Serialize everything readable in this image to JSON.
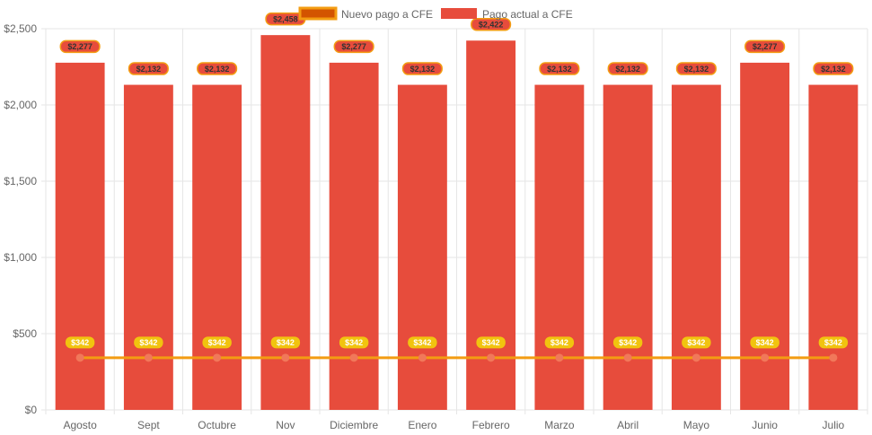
{
  "chart_data": {
    "type": "bar",
    "categories": [
      "Agosto",
      "Sept",
      "Octubre",
      "Nov",
      "Diciembre",
      "Enero",
      "Febrero",
      "Marzo",
      "Abril",
      "Mayo",
      "Junio",
      "Julio"
    ],
    "series": [
      {
        "name": "Pago actual a CFE",
        "type": "bar",
        "color": "#e74c3c",
        "values": [
          2277,
          2132,
          2132,
          2458,
          2277,
          2132,
          2422,
          2132,
          2132,
          2132,
          2277,
          2132
        ],
        "labels": [
          "$2,277",
          "$2,132",
          "$2,132",
          "$2,458",
          "$2,277",
          "$2,132",
          "$2,422",
          "$2,132",
          "$2,132",
          "$2,132",
          "$2,277",
          "$2,132"
        ]
      },
      {
        "name": "Nuevo pago a CFE",
        "type": "line",
        "color": "#f39c12",
        "values": [
          342,
          342,
          342,
          342,
          342,
          342,
          342,
          342,
          342,
          342,
          342,
          342
        ],
        "labels": [
          "$342",
          "$342",
          "$342",
          "$342",
          "$342",
          "$342",
          "$342",
          "$342",
          "$342",
          "$342",
          "$342",
          "$342"
        ]
      }
    ],
    "ylim": [
      0,
      2500
    ],
    "yticks": [
      0,
      500,
      1000,
      1500,
      2000,
      2500
    ],
    "ytick_labels": [
      "$0",
      "$500",
      "$1,000",
      "$1,500",
      "$2,000",
      "$2,500"
    ],
    "grid": true,
    "legend_position": "top",
    "colors": {
      "bar_label_bg": "#e74c3c",
      "bar_label_border": "#f39c12",
      "bar_label_text": "#333333",
      "line_label_bg": "#f1c40f",
      "line_label_text": "#ffffff",
      "line_point": "#f1785a",
      "grid": "#e6e6e6",
      "legend_line_swatch": "#d35400"
    }
  }
}
